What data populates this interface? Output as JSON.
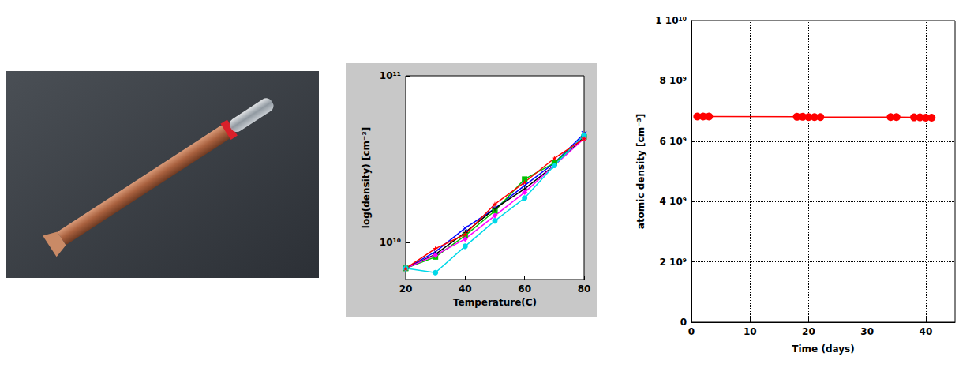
{
  "chart_data": [
    {
      "type": "line",
      "x": [
        20,
        30,
        40,
        50,
        60,
        70,
        80
      ],
      "series": [
        {
          "color": "#0000ff",
          "marker": "x",
          "values": [
            7000000000,
            8800000000,
            12200000000,
            16000000000,
            22000000000,
            30000000000,
            45000000000
          ]
        },
        {
          "color": "#00c000",
          "marker": "square",
          "values": [
            7000000000,
            8200000000,
            11000000000,
            15500000000,
            24000000000,
            30000000000,
            43000000000
          ]
        },
        {
          "color": "#000000",
          "marker": "plus",
          "values": [
            7000000000,
            8500000000,
            11500000000,
            16000000000,
            21000000000,
            29000000000,
            43000000000
          ]
        },
        {
          "color": "#ff00ff",
          "marker": "diamond",
          "values": [
            7000000000,
            8400000000,
            10500000000,
            14500000000,
            20000000000,
            29000000000,
            42000000000
          ]
        },
        {
          "color": "#00d8e8",
          "marker": "circle",
          "values": [
            7000000000,
            6600000000,
            9500000000,
            13500000000,
            18500000000,
            29000000000,
            44000000000
          ]
        },
        {
          "color": "#ff0000",
          "marker": "star",
          "values": [
            7000000000,
            9200000000,
            11200000000,
            17000000000,
            23000000000,
            32000000000,
            42000000000
          ]
        }
      ],
      "xlabel": "Temperature(C)",
      "ylabel": "log(density) [cm⁻³]",
      "xlim": [
        20,
        80
      ],
      "xticks": [
        20,
        40,
        60,
        80
      ],
      "ylim": [
        6000000000,
        100000000000
      ],
      "yticks": [
        {
          "value": 10000000000,
          "label": "10¹⁰"
        },
        {
          "value": 100000000000,
          "label": "10¹¹"
        }
      ],
      "log": "y",
      "grid": false
    },
    {
      "type": "line",
      "x": [
        1,
        2,
        3,
        18,
        19,
        20,
        21,
        22,
        34,
        35,
        38,
        39,
        40,
        41
      ],
      "series": [
        {
          "color": "#ff0000",
          "marker": "circle",
          "line_style": "solid",
          "values": [
            6820000000,
            6820000000,
            6820000000,
            6810000000,
            6810000000,
            6800000000,
            6800000000,
            6800000000,
            6800000000,
            6800000000,
            6790000000,
            6790000000,
            6780000000,
            6780000000
          ]
        }
      ],
      "xlabel": "Time (days)",
      "ylabel": "atomic density [cm⁻³]",
      "xlim": [
        0,
        45
      ],
      "xticks": [
        0,
        10,
        20,
        30,
        40
      ],
      "ylim": [
        0,
        10000000000
      ],
      "yticks": [
        0,
        {
          "value": 2000000000,
          "label": "2 10⁹"
        },
        {
          "value": 4000000000,
          "label": "4 10⁹"
        },
        {
          "value": 6000000000,
          "label": "6 10⁹"
        },
        {
          "value": 8000000000,
          "label": "8 10⁹"
        },
        {
          "value": 10000000000,
          "label": "1 10¹⁰"
        }
      ],
      "grid": true
    }
  ]
}
